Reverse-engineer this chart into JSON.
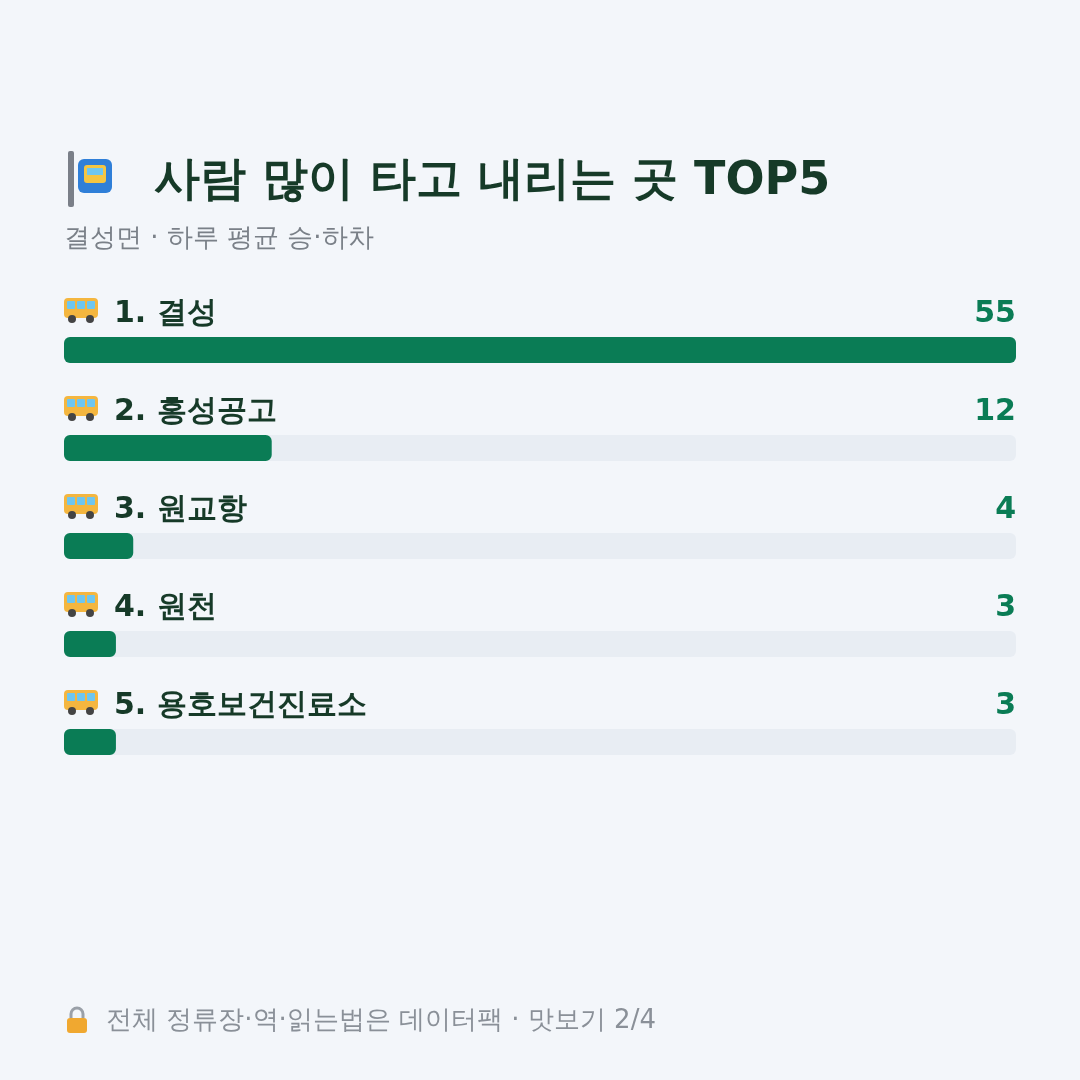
{
  "chart_data": {
    "type": "bar",
    "orientation": "horizontal",
    "title": "사람 많이 타고 내리는 곳 TOP5",
    "subtitle": "결성면 · 하루 평균 승·하차",
    "categories": [
      "1. 결성",
      "2. 홍성공고",
      "3. 원교항",
      "4. 원천",
      "5. 용호보건진료소"
    ],
    "values": [
      55,
      12,
      4,
      3,
      3
    ],
    "color": "#0a7c55",
    "data_labels": true,
    "annotations": [
      "전체 정류장·역·읽는법은 데이터팩 · 맛보기 2/4"
    ]
  }
}
